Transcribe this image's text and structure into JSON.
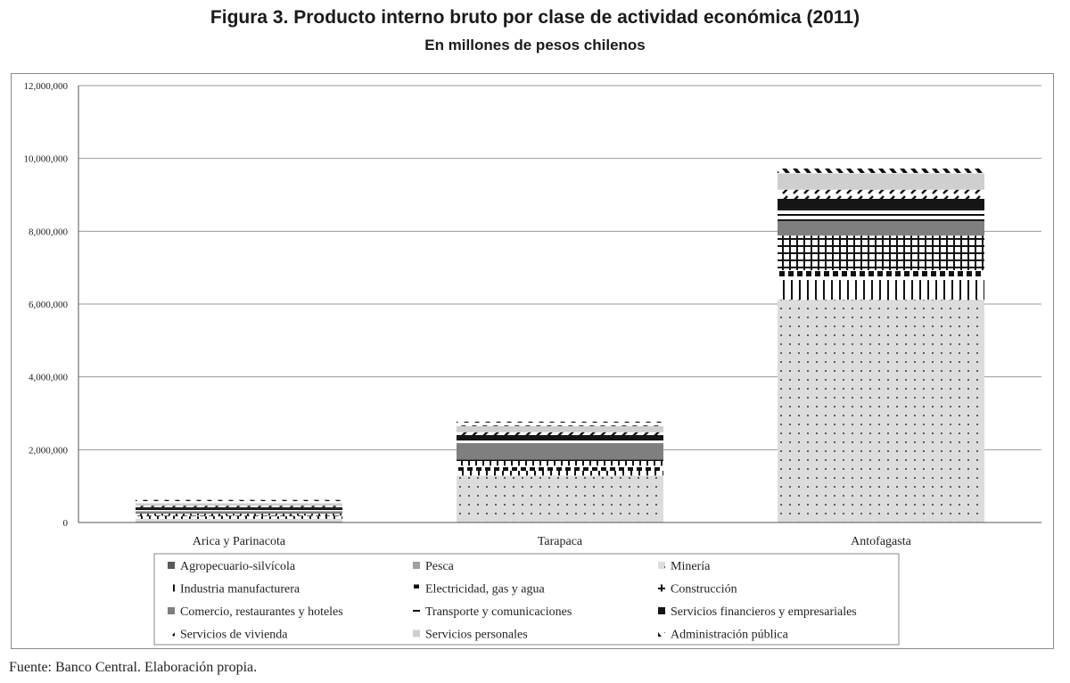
{
  "title": "Figura 3. Producto interno bruto por clase de actividad económica (2011)",
  "subtitle": "En millones de pesos chilenos",
  "source": "Fuente: Banco Central. Elaboración propia.",
  "chart_data": {
    "type": "bar",
    "stacked": true,
    "categories": [
      "Arica y Parinacota",
      "Tarapaca",
      "Antofagasta"
    ],
    "ylim": [
      0,
      12000000
    ],
    "yticks": [
      0,
      2000000,
      4000000,
      6000000,
      8000000,
      10000000,
      12000000
    ],
    "ytick_labels": [
      "0",
      "2,000,000",
      "4,000,000",
      "6,000,000",
      "8,000,000",
      "10,000,000",
      "12,000,000"
    ],
    "grid": true,
    "legend_position": "bottom",
    "series": [
      {
        "name": "Agropecuario-silvícola",
        "values": [
          20000,
          10000,
          10000
        ],
        "pattern": "dark-solid"
      },
      {
        "name": "Pesca",
        "values": [
          10000,
          10000,
          10000
        ],
        "pattern": "mid-solid"
      },
      {
        "name": "Minería",
        "values": [
          70000,
          1270000,
          6100000
        ],
        "pattern": "dots"
      },
      {
        "name": "Industria manufacturera",
        "values": [
          70000,
          130000,
          540000
        ],
        "pattern": "vertical-lines"
      },
      {
        "name": "Electricidad, gas y agua",
        "values": [
          20000,
          140000,
          270000
        ],
        "pattern": "black-squares"
      },
      {
        "name": "Construcción",
        "values": [
          50000,
          170000,
          950000
        ],
        "pattern": "grid"
      },
      {
        "name": "Comercio, restaurantes y hoteles",
        "values": [
          70000,
          450000,
          400000
        ],
        "pattern": "grey-solid"
      },
      {
        "name": "Transporte y comunicaciones",
        "values": [
          60000,
          110000,
          330000
        ],
        "pattern": "horizontal-lines"
      },
      {
        "name": "Servicios financieros y empresariales",
        "values": [
          50000,
          110000,
          280000
        ],
        "pattern": "black-solid"
      },
      {
        "name": "Servicios de vivienda",
        "values": [
          40000,
          80000,
          250000
        ],
        "pattern": "diagonal-dashes"
      },
      {
        "name": "Servicios personales",
        "values": [
          70000,
          170000,
          450000
        ],
        "pattern": "light-solid"
      },
      {
        "name": "Administración pública",
        "values": [
          90000,
          120000,
          150000
        ],
        "pattern": "zigzag"
      }
    ]
  }
}
